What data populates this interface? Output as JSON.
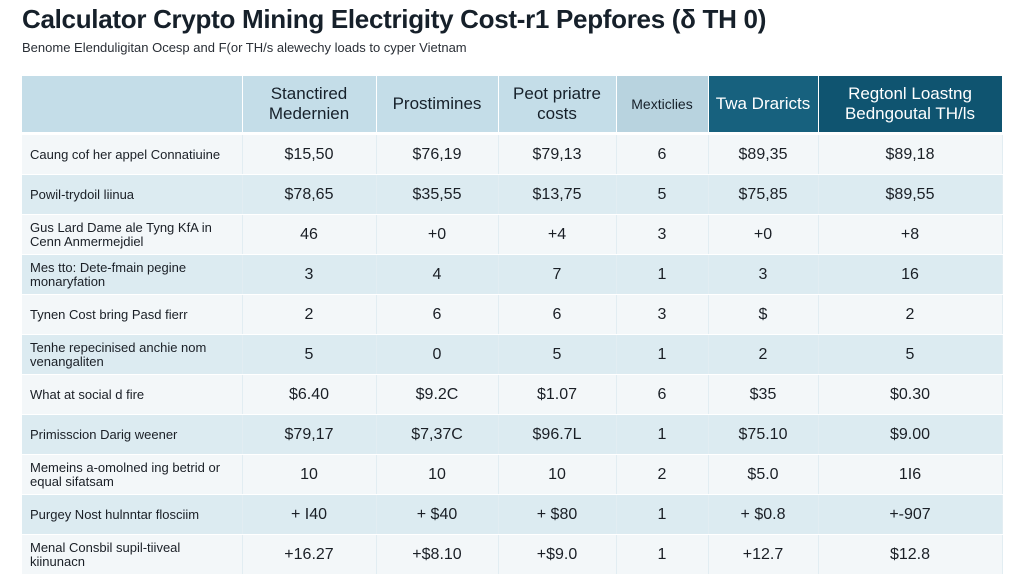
{
  "title": "Calculator Crypto Mining Electrigity Cost-r1 Pepfores (δ TH 0)",
  "subtitle": "Benome Elenduligitan Ocesp and F(or TH/s alewechy loads to cyper Vietnam",
  "table": {
    "headers": [
      "",
      "Stanctired Medernien",
      "Prostimines",
      "Peot priatre costs",
      "Mexticlies",
      "Twa Draricts",
      "Regtonl Loastng Bedngoutal TH/ls"
    ],
    "rows": [
      [
        "Caung cof her appel Connatiuine",
        "$15,50",
        "$76,19",
        "$79,13",
        "6",
        "$89,35",
        "$89,18"
      ],
      [
        "Powil-trydoil liinua",
        "$78,65",
        "$35,55",
        "$13,75",
        "5",
        "$75,85",
        "$89,55"
      ],
      [
        "Gus Lard Dame ale Tyng KfA in Cenn Anmermejdiel",
        "46",
        "+0",
        "+4",
        "3",
        "+0",
        "+8"
      ],
      [
        "Mes tto: Dete-fmain pegine monaryfation",
        "3",
        "4",
        "7",
        "1",
        "3",
        "16"
      ],
      [
        "Tynen Cost bring Pasd fierr",
        "2",
        "6",
        "6",
        "3",
        "$",
        "2"
      ],
      [
        "Tenhe repecinised anchie nom venangaliten",
        "5",
        "0",
        "5",
        "1",
        "2",
        "5"
      ],
      [
        "What at social d fire",
        "$6.40",
        "$9.2C",
        "$1.07",
        "6",
        "$35",
        "$0.30"
      ],
      [
        "Primisscion Darig weener",
        "$79,17",
        "$7,37C",
        "$96.7L",
        "1",
        "$75.10",
        "$9.00"
      ],
      [
        "Memeins a-omolned ing betrid or equal sifatsam",
        "10",
        "10",
        "10",
        "2",
        "$5.0",
        "1I6"
      ],
      [
        "Purgey Nost hulnntar flosciim",
        "+ I40",
        "+ $40",
        "+ $80",
        "1",
        "+ $0.8",
        "+-907"
      ],
      [
        "Menal Consbil supil-tiiveal kiinunacn",
        "+16.27",
        "+$8.10",
        "+$9.0",
        "1",
        "+12.7",
        "$12.8"
      ]
    ]
  }
}
